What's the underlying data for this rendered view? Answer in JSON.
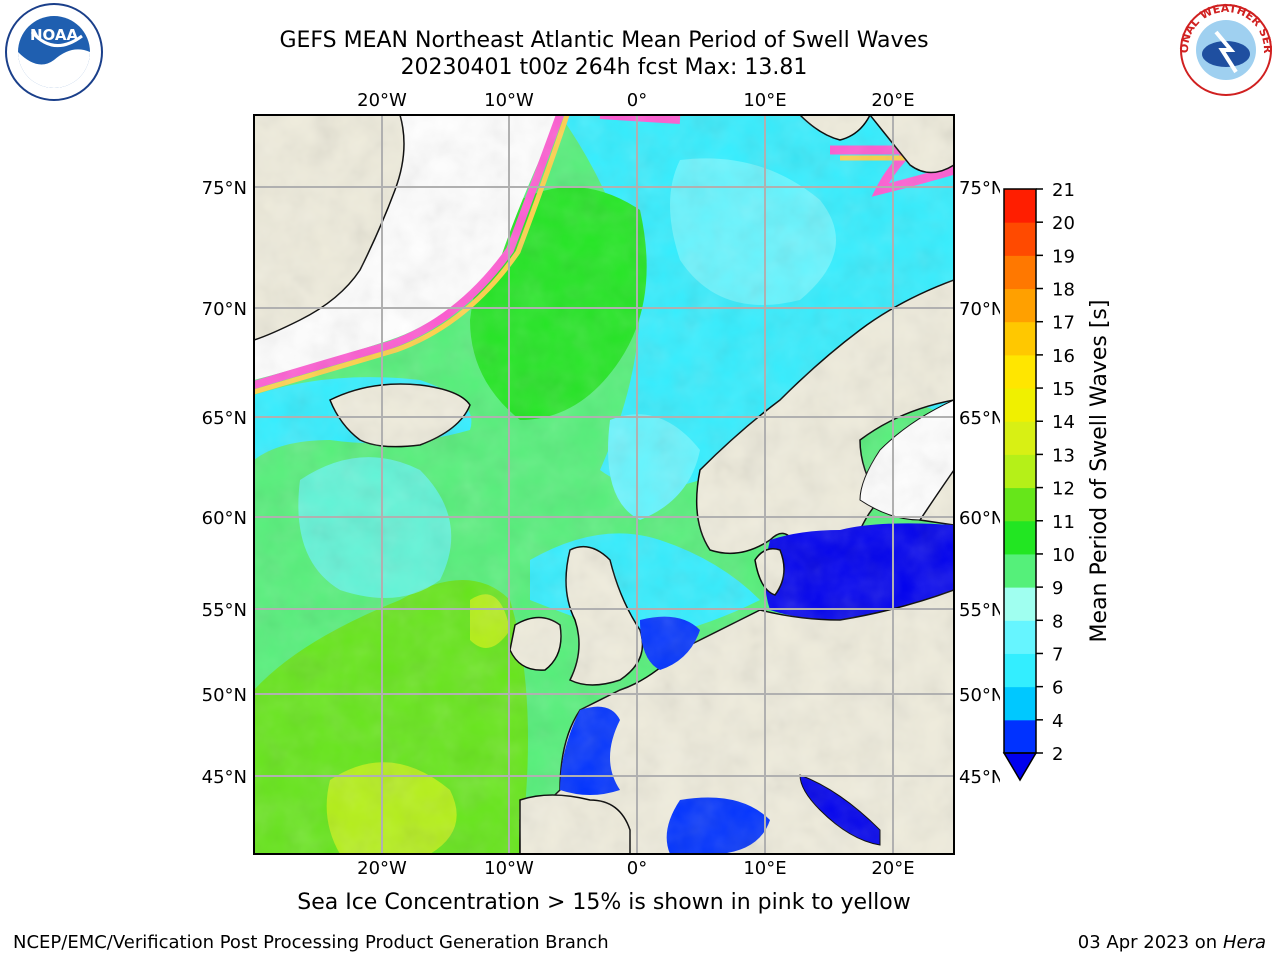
{
  "title": {
    "line1": "GEFS MEAN Northeast Atlantic Mean Period of Swell Waves",
    "line2": "20230401 t00z 264h fcst   Max: 13.81"
  },
  "map": {
    "lon_labels": [
      "20°W",
      "10°W",
      "0°",
      "10°E",
      "20°E"
    ],
    "lat_labels": [
      "75°N",
      "70°N",
      "65°N",
      "60°N",
      "55°N",
      "50°N",
      "45°N"
    ],
    "colors": {
      "land": "#efecdc",
      "ice_white": "#ffffff",
      "grid": "#b0b0b0"
    }
  },
  "colorbar": {
    "label": "Mean Period of Swell Waves [s]",
    "ticks": [
      "2",
      "4",
      "6",
      "7",
      "8",
      "9",
      "10",
      "11",
      "12",
      "13",
      "14",
      "15",
      "16",
      "17",
      "18",
      "19",
      "20",
      "21"
    ],
    "colors": [
      "#0032ff",
      "#00c8ff",
      "#33eeff",
      "#66f5ff",
      "#a0fff0",
      "#55f07a",
      "#22e622",
      "#66e61a",
      "#b5f018",
      "#d8f014",
      "#f0f000",
      "#ffe600",
      "#ffc800",
      "#ffa000",
      "#ff7800",
      "#ff4a00",
      "#ff1e00"
    ],
    "extend_color": "#0000ee"
  },
  "note": "Sea Ice Concentration > 15% is shown in pink to yellow",
  "footer": {
    "left": "NCEP/EMC/Verification Post Processing Product Generation Branch",
    "date": "03 Apr 2023 on ",
    "machine": "Hera"
  },
  "logos": {
    "noaa_text": "NOAA",
    "nws_text": "NATIONAL WEATHER SERVICE"
  }
}
